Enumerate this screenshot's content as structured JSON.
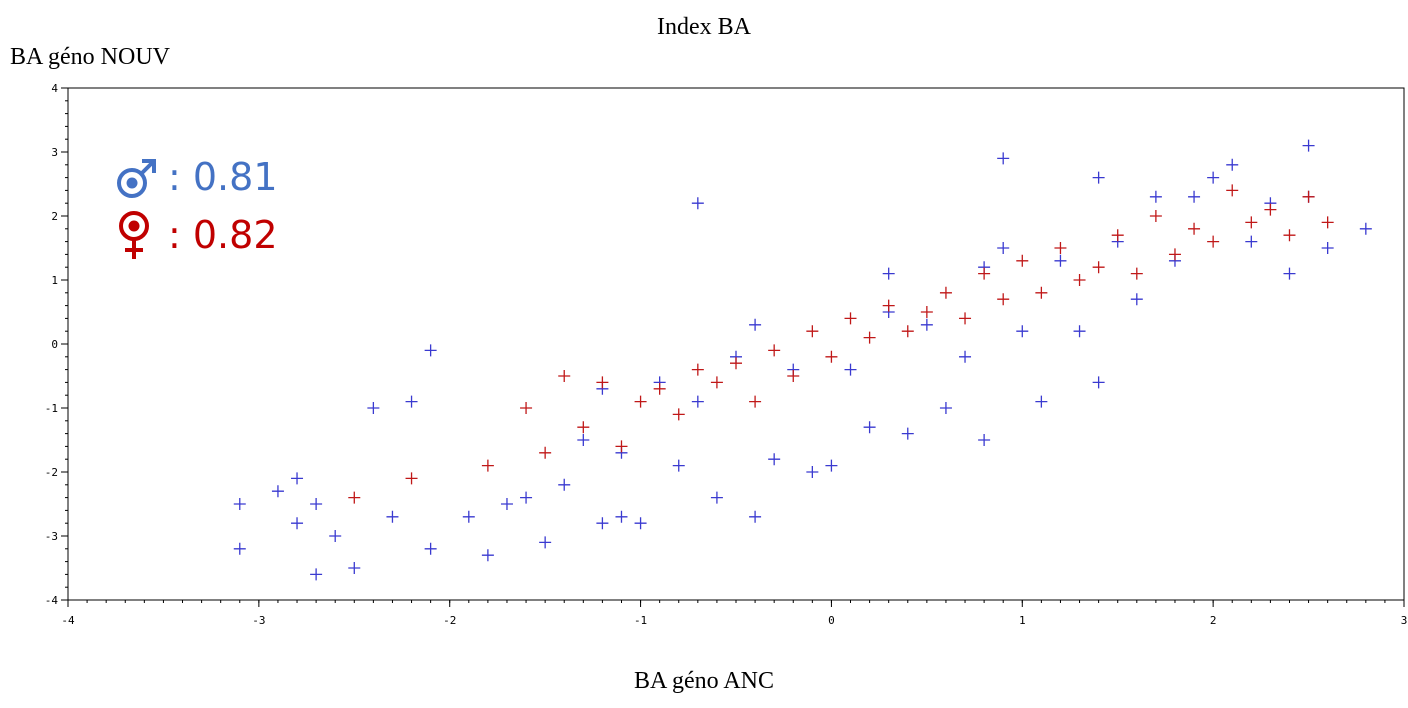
{
  "chart_data": {
    "type": "scatter",
    "title": "Index BA",
    "xlabel": "BA géno ANC",
    "ylabel": "BA géno NOUV",
    "xlim": [
      -4,
      3
    ],
    "ylim": [
      -4,
      4
    ],
    "xticks": [
      "-4",
      "-3",
      "-2",
      "-1",
      "0",
      "1",
      "2",
      "3"
    ],
    "yticks": [
      "-4",
      "-3",
      "-2",
      "-1",
      "0",
      "1",
      "2",
      "3",
      "4"
    ],
    "marker": "plus",
    "grid": false,
    "legend_placement": "top-left",
    "series": [
      {
        "name": "0.81",
        "symbol": "male",
        "legend_text": ": 0.81",
        "color": "#3a3ad0",
        "legend_color": "#4472c4",
        "correlation": 0.81,
        "x": [
          -3.1,
          -3.1,
          -2.9,
          -2.8,
          -2.8,
          -2.7,
          -2.7,
          -2.6,
          -2.5,
          -2.4,
          -2.3,
          -2.2,
          -2.1,
          -2.1,
          -1.9,
          -1.8,
          -1.7,
          -1.6,
          -1.5,
          -1.4,
          -1.3,
          -1.2,
          -1.2,
          -1.1,
          -1.1,
          -1.0,
          -0.9,
          -0.8,
          -0.7,
          -0.6,
          -0.5,
          -0.4,
          -0.3,
          -0.2,
          -0.1,
          0.0,
          0.1,
          0.2,
          0.3,
          0.4,
          0.5,
          0.6,
          0.7,
          0.8,
          0.8,
          0.9,
          1.0,
          1.1,
          1.2,
          1.3,
          1.4,
          1.4,
          1.5,
          1.6,
          1.7,
          1.8,
          1.9,
          2.0,
          2.1,
          2.2,
          2.3,
          2.4,
          2.5,
          2.5,
          2.6,
          2.8,
          -0.7,
          0.9,
          -0.4,
          0.3
        ],
        "y": [
          -2.5,
          -3.2,
          -2.3,
          -2.1,
          -2.8,
          -2.5,
          -3.6,
          -3.0,
          -3.5,
          -1.0,
          -2.7,
          -0.9,
          -0.1,
          -3.2,
          -2.7,
          -3.3,
          -2.5,
          -2.4,
          -3.1,
          -2.2,
          -1.5,
          -2.8,
          -0.7,
          -2.7,
          -1.7,
          -2.8,
          -0.6,
          -1.9,
          -0.9,
          -2.4,
          -0.2,
          -2.7,
          -1.8,
          -0.4,
          -2.0,
          -1.9,
          -0.4,
          -1.3,
          0.5,
          -1.4,
          0.3,
          -1.0,
          -0.2,
          -1.5,
          1.2,
          2.9,
          0.2,
          -0.9,
          1.3,
          0.2,
          2.6,
          -0.6,
          1.6,
          0.7,
          2.3,
          1.3,
          2.3,
          2.6,
          2.8,
          1.6,
          2.2,
          1.1,
          3.1,
          2.3,
          1.5,
          1.8,
          2.2,
          1.5,
          0.3,
          1.1
        ]
      },
      {
        "name": "0.82",
        "symbol": "female",
        "legend_text": ": 0.82",
        "color": "#c01818",
        "legend_color": "#c00000",
        "correlation": 0.82,
        "x": [
          -2.5,
          -2.2,
          -1.8,
          -1.6,
          -1.5,
          -1.4,
          -1.3,
          -1.2,
          -1.1,
          -1.0,
          -0.9,
          -0.8,
          -0.7,
          -0.6,
          -0.5,
          -0.4,
          -0.3,
          -0.2,
          -0.1,
          0.0,
          0.1,
          0.2,
          0.3,
          0.4,
          0.5,
          0.6,
          0.7,
          0.8,
          0.9,
          1.0,
          1.1,
          1.2,
          1.3,
          1.4,
          1.5,
          1.6,
          1.7,
          1.8,
          1.9,
          2.0,
          2.1,
          2.2,
          2.3,
          2.4,
          2.5,
          2.6
        ],
        "y": [
          -2.4,
          -2.1,
          -1.9,
          -1.0,
          -1.7,
          -0.5,
          -1.3,
          -0.6,
          -1.6,
          -0.9,
          -0.7,
          -1.1,
          -0.4,
          -0.6,
          -0.3,
          -0.9,
          -0.1,
          -0.5,
          0.2,
          -0.2,
          0.4,
          0.1,
          0.6,
          0.2,
          0.5,
          0.8,
          0.4,
          1.1,
          0.7,
          1.3,
          0.8,
          1.5,
          1.0,
          1.2,
          1.7,
          1.1,
          2.0,
          1.4,
          1.8,
          1.6,
          2.4,
          1.9,
          2.1,
          1.7,
          2.3,
          1.9
        ]
      }
    ]
  }
}
